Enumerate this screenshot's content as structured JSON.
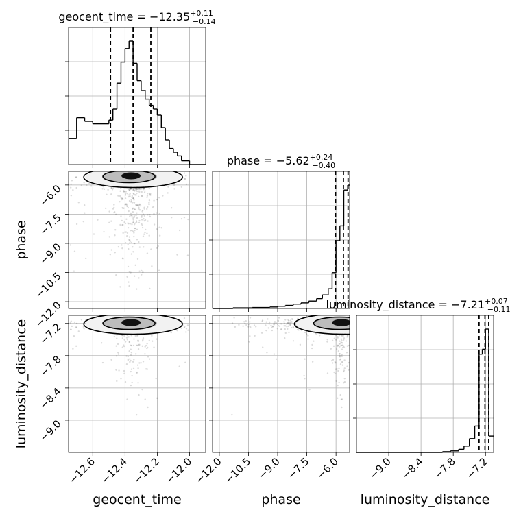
{
  "chart_data": {
    "type": "corner",
    "parameters": [
      "geocent_time",
      "phase",
      "luminosity_distance"
    ],
    "titles": [
      {
        "param": "geocent_time",
        "prefix": "geocent_time = ",
        "median": "−12.35",
        "plus": "+0.11",
        "minus": "−0.14"
      },
      {
        "param": "phase",
        "prefix": "phase = ",
        "median": "−5.62",
        "plus": "+0.24",
        "minus": "−0.40"
      },
      {
        "param": "luminosity_distance",
        "prefix": "luminosity_distance = ",
        "median": "−7.21",
        "plus": "+0.07",
        "minus": "−0.11"
      }
    ],
    "ranges": {
      "geocent_time": [
        -12.75,
        -11.9
      ],
      "phase": [
        -12.35,
        -5.3
      ],
      "luminosity_distance": [
        -9.6,
        -7.05
      ]
    },
    "ticks": {
      "geocent_time": {
        "values": [
          -12.6,
          -12.4,
          -12.2,
          -12.0
        ],
        "labels": [
          "−12.6",
          "−12.4",
          "−12.2",
          "−12.0"
        ]
      },
      "phase": {
        "values": [
          -12.0,
          -10.5,
          -9.0,
          -7.5,
          -6.0
        ],
        "labels": [
          "−12.0",
          "−10.5",
          "−9.0",
          "−7.5",
          "−6.0"
        ]
      },
      "luminosity_distance": {
        "values": [
          -9.0,
          -8.4,
          -7.8,
          -7.2
        ],
        "labels": [
          "−9.0",
          "−8.4",
          "−7.8",
          "−7.2"
        ]
      }
    },
    "quantiles": {
      "geocent_time": [
        -12.49,
        -12.35,
        -12.24
      ],
      "phase": [
        -6.02,
        -5.62,
        -5.38
      ],
      "luminosity_distance": [
        -7.32,
        -7.21,
        -7.14
      ]
    },
    "histograms": {
      "geocent_time": {
        "edges": [
          -12.75,
          -12.7,
          -12.65,
          -12.6,
          -12.55,
          -12.5,
          -12.475,
          -12.45,
          -12.425,
          -12.4,
          -12.375,
          -12.35,
          -12.325,
          -12.3,
          -12.275,
          -12.25,
          -12.225,
          -12.2,
          -12.175,
          -12.15,
          -12.125,
          -12.1,
          -12.075,
          -12.05,
          -12.0,
          -11.9
        ],
        "counts": [
          0.21,
          0.38,
          0.35,
          0.33,
          0.33,
          0.36,
          0.45,
          0.66,
          0.83,
          0.94,
          1.0,
          0.82,
          0.68,
          0.6,
          0.53,
          0.48,
          0.45,
          0.4,
          0.3,
          0.2,
          0.13,
          0.1,
          0.07,
          0.03,
          0.0
        ]
      },
      "phase": {
        "edges": [
          -12.35,
          -11.3,
          -10.3,
          -9.4,
          -9.0,
          -8.6,
          -8.2,
          -7.8,
          -7.4,
          -7.0,
          -6.7,
          -6.4,
          -6.2,
          -6.0,
          -5.8,
          -5.6,
          -5.4,
          -5.3
        ],
        "counts": [
          0.0,
          0.005,
          0.008,
          0.012,
          0.018,
          0.025,
          0.035,
          0.045,
          0.06,
          0.08,
          0.11,
          0.16,
          0.29,
          0.55,
          0.67,
          0.96,
          1.0
        ]
      },
      "luminosity_distance": {
        "edges": [
          -9.6,
          -8.0,
          -7.85,
          -7.7,
          -7.6,
          -7.5,
          -7.4,
          -7.32,
          -7.26,
          -7.2,
          -7.14,
          -7.05
        ],
        "counts": [
          0.0,
          0.006,
          0.012,
          0.025,
          0.05,
          0.11,
          0.21,
          0.78,
          0.82,
          0.98,
          0.13
        ]
      }
    },
    "title": "",
    "grid": true
  }
}
